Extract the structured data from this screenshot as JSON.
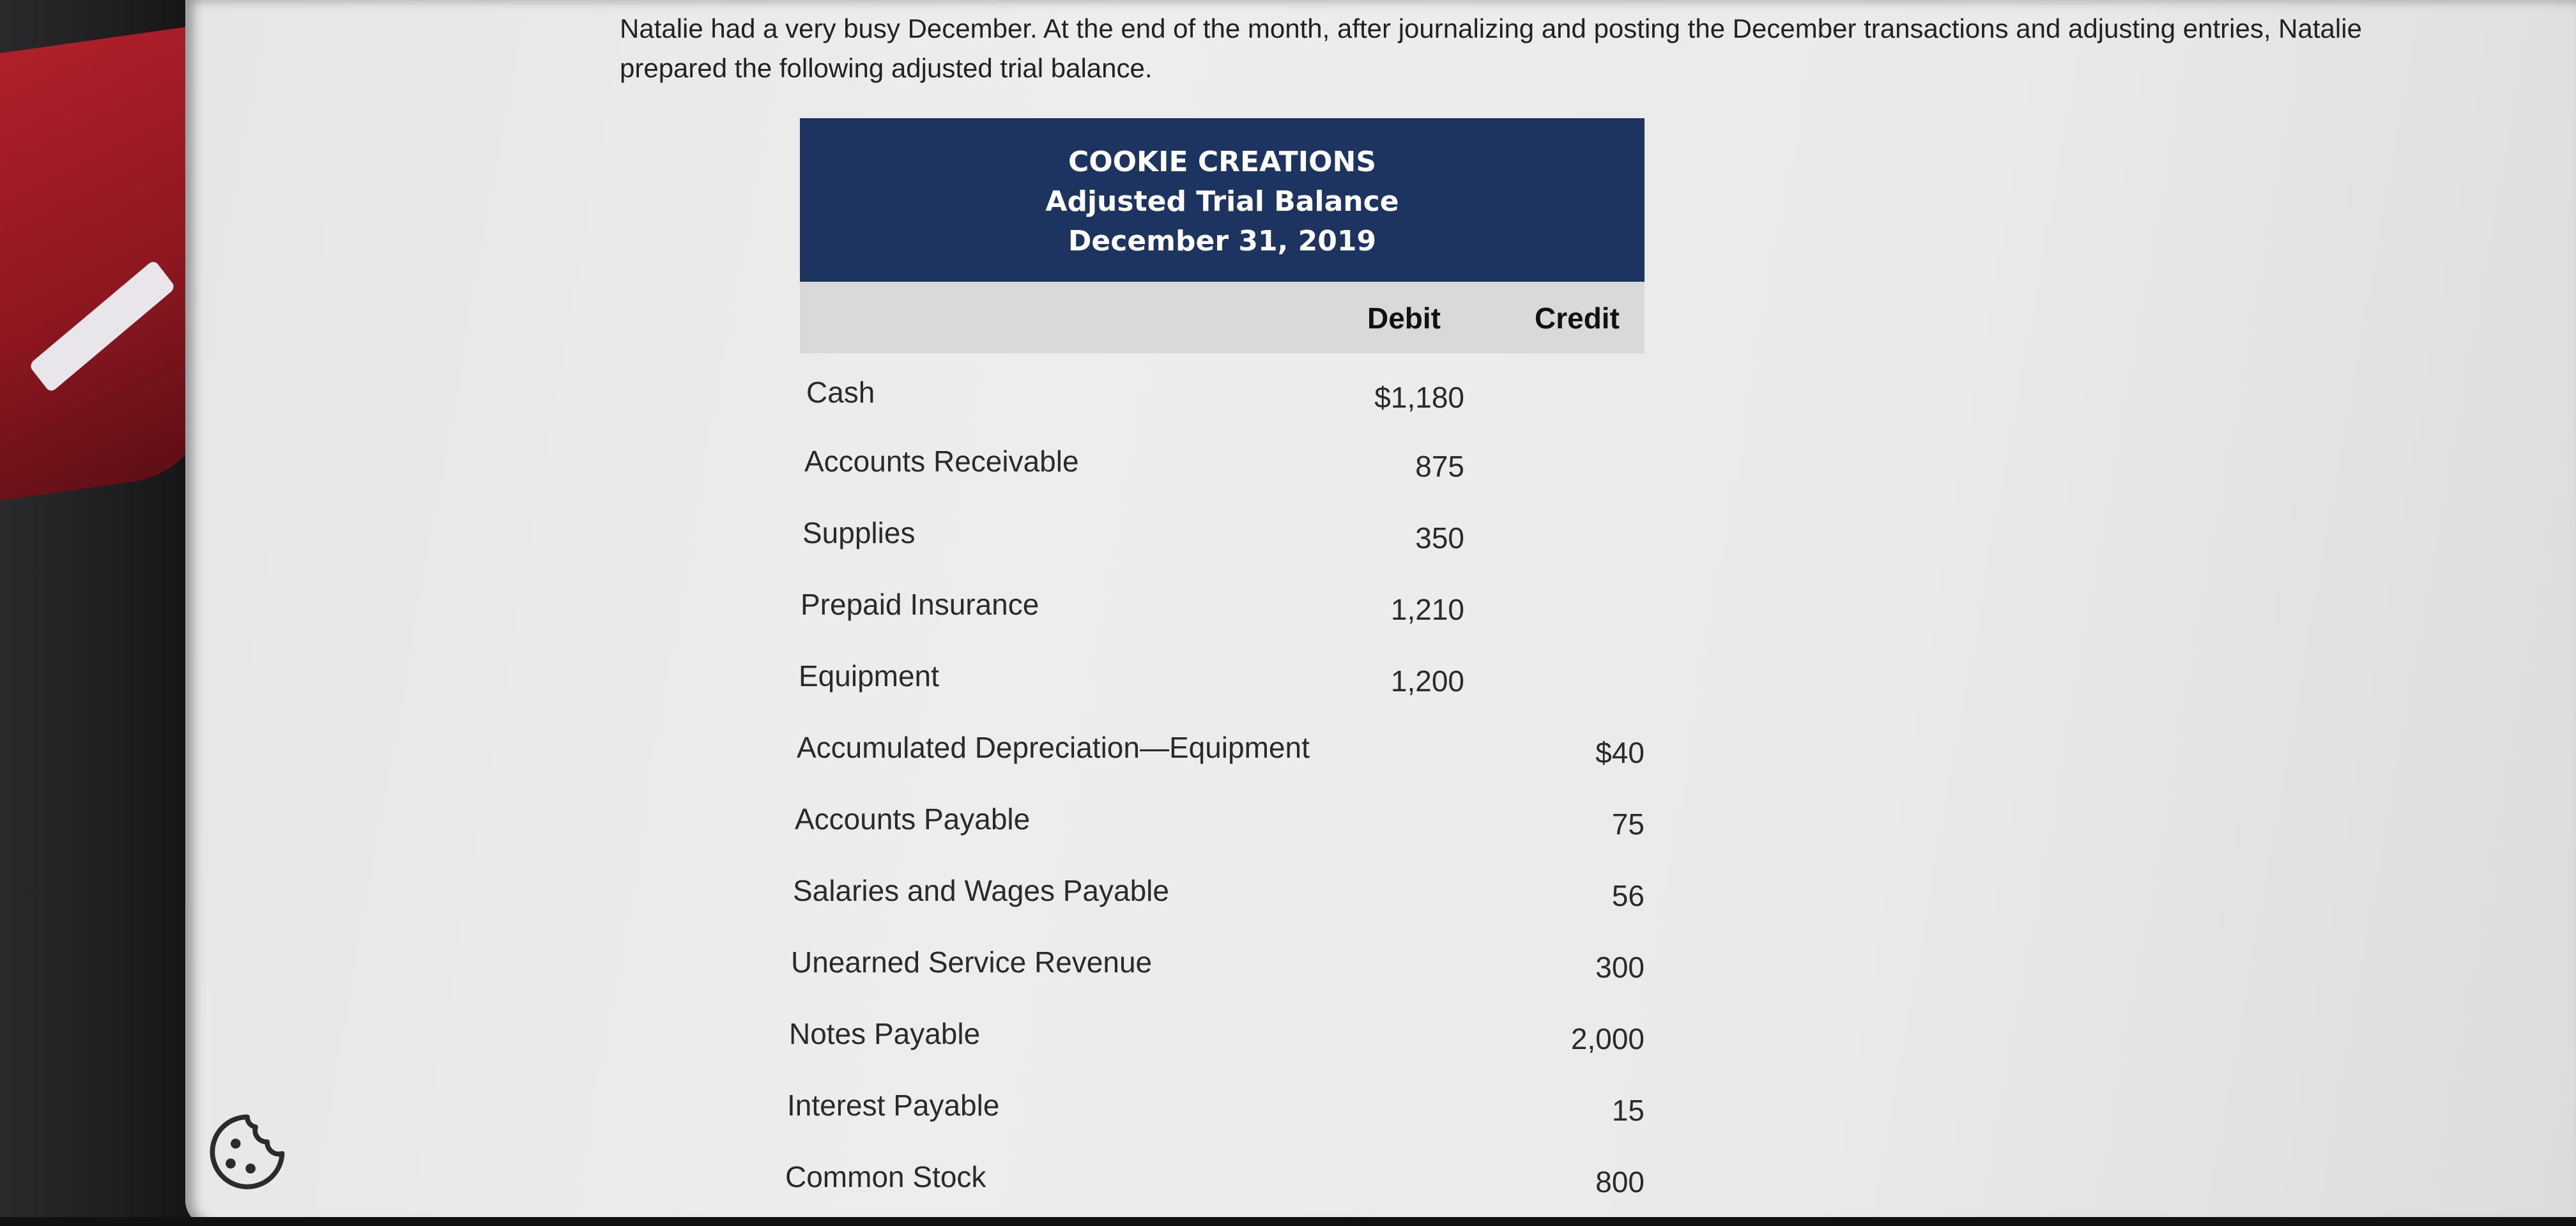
{
  "intro_text": "Natalie had a very busy December. At the end of the month, after journalizing and posting the December transactions and adjusting entries, Natalie prepared the following adjusted trial balance.",
  "table": {
    "company": "COOKIE CREATIONS",
    "statement": "Adjusted Trial Balance",
    "date": "December 31, 2019",
    "debit_header": "Debit",
    "credit_header": "Credit",
    "rows": [
      {
        "account": "Cash",
        "debit": "$1,180",
        "credit": ""
      },
      {
        "account": "Accounts Receivable",
        "debit": "875",
        "credit": ""
      },
      {
        "account": "Supplies",
        "debit": "350",
        "credit": ""
      },
      {
        "account": "Prepaid Insurance",
        "debit": "1,210",
        "credit": ""
      },
      {
        "account": "Equipment",
        "debit": "1,200",
        "credit": ""
      },
      {
        "account": "Accumulated Depreciation—Equipment",
        "debit": "",
        "credit": "$40"
      },
      {
        "account": "Accounts Payable",
        "debit": "",
        "credit": "75"
      },
      {
        "account": "Salaries and Wages Payable",
        "debit": "",
        "credit": "56"
      },
      {
        "account": "Unearned Service Revenue",
        "debit": "",
        "credit": "300"
      },
      {
        "account": "Notes Payable",
        "debit": "",
        "credit": "2,000"
      },
      {
        "account": "Interest Payable",
        "debit": "",
        "credit": "15"
      },
      {
        "account": "Common Stock",
        "debit": "",
        "credit": "800"
      }
    ]
  },
  "icons": {
    "cookie": "cookie-icon"
  },
  "colors": {
    "header_bg": "#1e3460",
    "header_text": "#ffffff",
    "column_header_bg": "#d9d9d9",
    "page_bg": "#eaeaea"
  }
}
